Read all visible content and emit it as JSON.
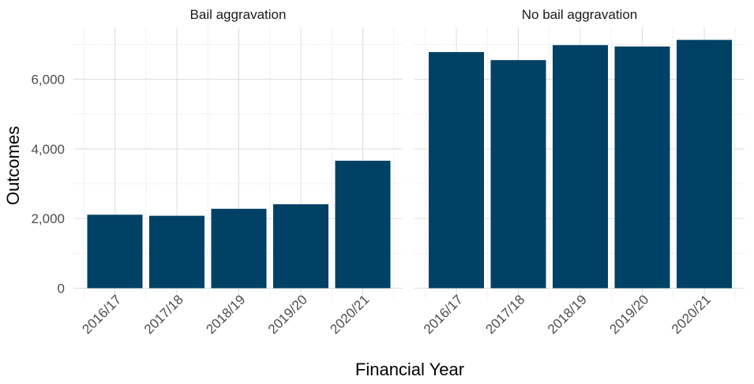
{
  "chart_data": {
    "type": "bar",
    "facets": [
      "Bail aggravation",
      "No bail aggravation"
    ],
    "categories": [
      "2016/17",
      "2017/18",
      "2018/19",
      "2019/20",
      "2020/21"
    ],
    "series": [
      {
        "facet": "Bail aggravation",
        "values": [
          2110,
          2080,
          2280,
          2410,
          3660
        ]
      },
      {
        "facet": "No bail aggravation",
        "values": [
          6780,
          6550,
          6980,
          6940,
          7130
        ]
      }
    ],
    "xlabel": "Financial Year",
    "ylabel": "Outcomes",
    "ylim": [
      0,
      7300
    ],
    "yticks": [
      0,
      2000,
      4000,
      6000
    ],
    "ytick_labels": [
      "0",
      "2,000",
      "4,000",
      "6,000"
    ],
    "bar_color": "#004165",
    "grid": true,
    "legend": "none"
  }
}
